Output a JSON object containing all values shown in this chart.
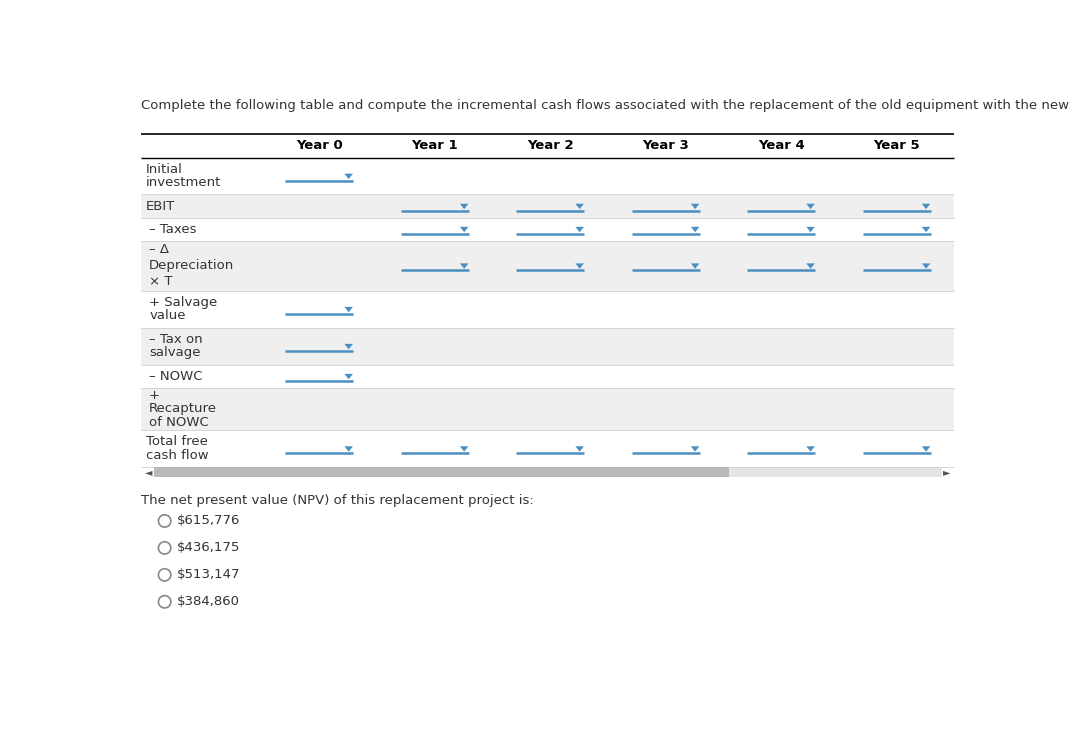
{
  "title": "Complete the following table and compute the incremental cash flows associated with the replacement of the old equipment with the new equipment.",
  "title_fontsize": 9.5,
  "col_headers": [
    "Year 0",
    "Year 1",
    "Year 2",
    "Year 3",
    "Year 4",
    "Year 5"
  ],
  "row_labels": [
    [
      "Initial",
      "investment"
    ],
    [
      "EBIT"
    ],
    [
      "– Taxes"
    ],
    [
      "– Δ",
      "Depreciation",
      "× T"
    ],
    [
      "+ Salvage",
      "value"
    ],
    [
      "– Tax on",
      "salvage"
    ],
    [
      "– NOWC"
    ],
    [
      "+",
      "Recapture",
      "of NOWC"
    ],
    [
      "Total free",
      "cash flow"
    ]
  ],
  "row_label_indent": [
    0,
    0,
    4,
    4,
    4,
    4,
    4,
    4,
    0
  ],
  "row_shaded": [
    false,
    true,
    false,
    true,
    false,
    true,
    false,
    true,
    false
  ],
  "dropdown_positions": {
    "row0": {
      "cols": [
        0
      ],
      "yr0_only": true
    },
    "row1": {
      "cols": [
        1,
        2,
        3,
        4,
        5
      ]
    },
    "row2": {
      "cols": [
        1,
        2,
        3,
        4,
        5
      ]
    },
    "row3": {
      "cols": [
        1,
        2,
        3,
        4,
        5
      ]
    },
    "row4": {
      "cols": [
        0
      ]
    },
    "row5": {
      "cols": [
        0
      ]
    },
    "row6": {
      "cols": [
        0
      ]
    },
    "row7": {
      "cols": []
    },
    "row8": {
      "cols": [
        0,
        1,
        2,
        3,
        4,
        5
      ]
    }
  },
  "npv_question": "The net present value (NPV) of this replacement project is:",
  "npv_options": [
    "$615,776",
    "$436,175",
    "$513,147",
    "$384,860"
  ],
  "bg_color": "#ffffff",
  "shaded_color": "#efefef",
  "line_color": "#4a8fc0",
  "arrow_color": "#4a8fc0",
  "text_color": "#333333",
  "header_color": "#000000",
  "border_top_color": "#000000",
  "border_row_color": "#d0d0d0",
  "scrollbar_color": "#b8b8b8",
  "scrollbar_bg": "#e4e4e4"
}
